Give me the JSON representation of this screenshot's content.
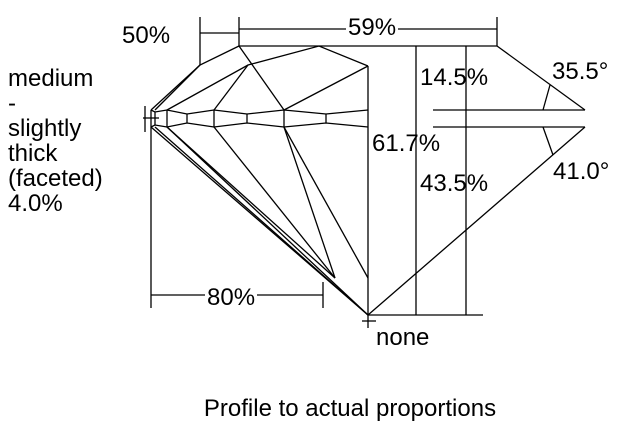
{
  "labels": {
    "crown_height_angle_offset": "50%",
    "table": "59%",
    "crown_height": "14.5%",
    "crown_angle": "35.5°",
    "total_depth": "61.7%",
    "pavilion_depth": "43.5%",
    "pavilion_angle": "41.0°",
    "lower_half": "80%",
    "culet": "none"
  },
  "girdle": {
    "lines": [
      "medium",
      "-",
      "slightly",
      "thick",
      "(faceted)",
      "4.0%"
    ]
  },
  "caption": "Profile to actual proportions"
}
